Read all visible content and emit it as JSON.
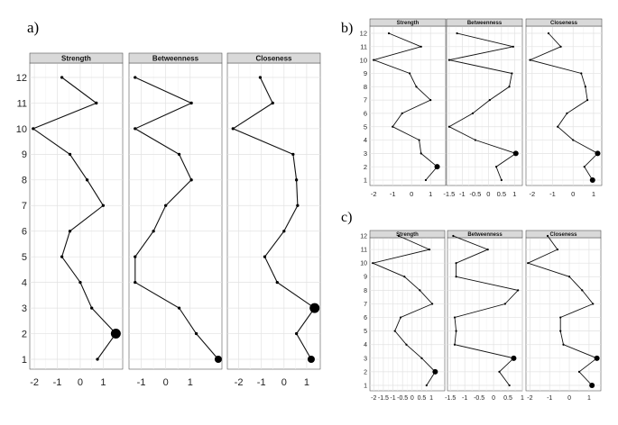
{
  "chart_data": [
    {
      "type": "line",
      "panel_label": "a)",
      "facets": [
        "Strength",
        "Betweenness",
        "Closeness"
      ],
      "y_categories": [
        "1",
        "2",
        "3",
        "4",
        "5",
        "6",
        "7",
        "8",
        "9",
        "10",
        "11",
        "12"
      ],
      "series": [
        {
          "facet": "Strength",
          "x": [
            0.75,
            1.55,
            0.5,
            0,
            -0.8,
            -0.45,
            1,
            0.3,
            -0.45,
            -2.05,
            0.7,
            -0.8
          ],
          "marker_size": [
            1,
            3,
            1,
            1,
            1,
            1,
            1,
            1,
            1,
            1,
            1,
            1
          ]
        },
        {
          "facet": "Betweenness",
          "x": [
            2.15,
            1.25,
            0.55,
            -1.25,
            -1.25,
            -0.5,
            0,
            1.05,
            0.55,
            -1.25,
            1.05,
            -1.25
          ],
          "marker_size": [
            2,
            1,
            1,
            1,
            1,
            1,
            1,
            1,
            1,
            1,
            1,
            1
          ]
        },
        {
          "facet": "Closeness",
          "x": [
            1.2,
            0.55,
            1.35,
            -0.3,
            -0.85,
            0,
            0.6,
            0.55,
            0.4,
            -2.25,
            -0.5,
            -1.05
          ],
          "marker_size": [
            2,
            1,
            3,
            1,
            1,
            1,
            1,
            1,
            1,
            1,
            1,
            1
          ]
        }
      ],
      "xlims": [
        [
          -2.2,
          1.85
        ],
        [
          -1.5,
          2.3
        ],
        [
          -2.5,
          1.6
        ]
      ],
      "x_ticks": [
        [
          -2,
          -1,
          0,
          1
        ],
        [
          -1,
          0,
          1
        ],
        [
          -2,
          -1,
          0,
          1
        ]
      ],
      "grid": true
    },
    {
      "type": "line",
      "panel_label": "b)",
      "facets": [
        "Strength",
        "Betweenness",
        "Closeness"
      ],
      "y_categories": [
        "1",
        "2",
        "3",
        "4",
        "5",
        "6",
        "7",
        "8",
        "9",
        "10",
        "11",
        "12"
      ],
      "series": [
        {
          "facet": "Strength",
          "x": [
            0.75,
            1.35,
            0.5,
            0.4,
            -1,
            -0.5,
            1,
            0.25,
            -0.1,
            -2,
            0.5,
            -1.2
          ],
          "marker_size": [
            1,
            2,
            1,
            1,
            1,
            1,
            1,
            1,
            1,
            1,
            1,
            1
          ]
        },
        {
          "facet": "Betweenness",
          "x": [
            0.5,
            0.3,
            1.05,
            -0.5,
            -1.5,
            -0.6,
            0.05,
            0.8,
            0.9,
            -1.5,
            0.95,
            -1.2
          ],
          "marker_size": [
            1,
            1,
            2,
            1,
            1,
            1,
            1,
            1,
            1,
            1,
            1,
            1
          ]
        },
        {
          "facet": "Closeness",
          "x": [
            0.95,
            0.55,
            1.2,
            0,
            -0.75,
            -0.3,
            0.7,
            0.6,
            0.4,
            -2.1,
            -0.6,
            -1.2
          ],
          "marker_size": [
            2,
            1,
            2,
            1,
            1,
            1,
            1,
            1,
            1,
            1,
            1,
            1
          ]
        }
      ],
      "x_ticks": [
        [
          "-2",
          "-1",
          "0",
          "1"
        ],
        [
          "-1.5",
          "-1",
          "-0.5",
          "0",
          "0.5",
          "1"
        ],
        [
          "-2",
          "-1",
          "0",
          "1"
        ]
      ],
      "x_tick_values": [
        [
          -2,
          -1,
          0,
          1
        ],
        [
          -1.5,
          -1,
          -0.5,
          0,
          0.5,
          1
        ],
        [
          -2,
          -1,
          0,
          1
        ]
      ],
      "xlims": [
        [
          -2.2,
          1.8
        ],
        [
          -1.6,
          1.3
        ],
        [
          -2.3,
          1.4
        ]
      ],
      "grid": true
    },
    {
      "type": "line",
      "panel_label": "c)",
      "facets": [
        "Strength",
        "Betweenness",
        "Closeness"
      ],
      "y_categories": [
        "1",
        "2",
        "3",
        "4",
        "5",
        "6",
        "7",
        "8",
        "9",
        "10",
        "11",
        "12"
      ],
      "series": [
        {
          "facet": "Strength",
          "x": [
            0.75,
            1.2,
            0.5,
            -0.3,
            -0.9,
            -0.6,
            1.05,
            0.4,
            -0.4,
            -2.05,
            0.9,
            -0.7
          ],
          "marker_size": [
            1,
            2,
            1,
            1,
            1,
            1,
            1,
            1,
            1,
            1,
            1,
            1
          ]
        },
        {
          "facet": "Betweenness",
          "x": [
            0.55,
            0.2,
            0.7,
            -1.35,
            -1.3,
            -1.35,
            0.4,
            0.85,
            -1.3,
            -1.3,
            -0.2,
            -1.4
          ],
          "marker_size": [
            1,
            1,
            2,
            1,
            1,
            1,
            1,
            1,
            1,
            1,
            1,
            1
          ]
        },
        {
          "facet": "Closeness",
          "x": [
            1.15,
            0.5,
            1.4,
            -0.3,
            -0.45,
            -0.45,
            1.2,
            0.65,
            0,
            -2.1,
            -0.6,
            -1.1
          ],
          "marker_size": [
            2,
            1,
            2,
            1,
            1,
            1,
            1,
            1,
            1,
            1,
            1,
            1
          ]
        }
      ],
      "x_ticks": [
        [
          "-2",
          "-1.5",
          "-1",
          "-0.5",
          "0",
          "0.5",
          "1"
        ],
        [
          "-1.5",
          "-1",
          "-0.5",
          "0",
          "0.5",
          "1"
        ],
        [
          "-2",
          "-1",
          "0",
          "1"
        ]
      ],
      "x_tick_values": [
        [
          -2,
          -1.5,
          -1,
          -0.5,
          0,
          0.5,
          1
        ],
        [
          -1.5,
          -1,
          -0.5,
          0,
          0.5,
          1
        ],
        [
          -2,
          -1,
          0,
          1
        ]
      ],
      "xlims": [
        [
          -2.2,
          1.7
        ],
        [
          -1.6,
          1.0
        ],
        [
          -2.2,
          1.6
        ]
      ],
      "grid": true
    }
  ]
}
